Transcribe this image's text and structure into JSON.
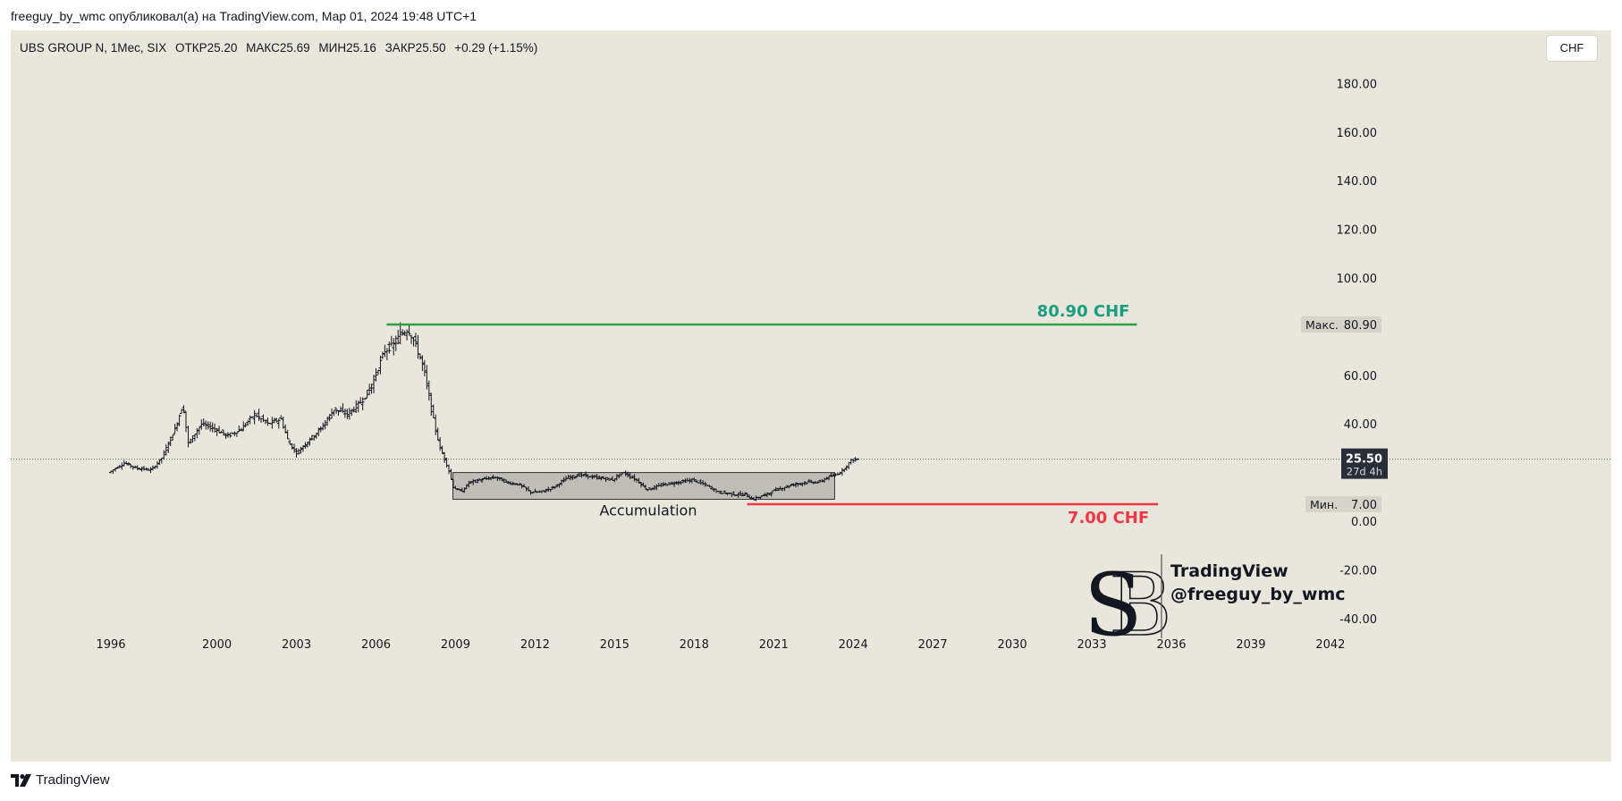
{
  "header": {
    "publish_text": "freeguy_by_wmc опубликовал(а) на TradingView.com, Мар 01, 2024 19:48 UTC+1"
  },
  "legend": {
    "symbol": "UBS GROUP N, 1Мес, SIX",
    "open": "ОТКР25.20",
    "high": "МАКС25.69",
    "low": "МИН25.16",
    "close": "ЗАКР25.50",
    "change": "+0.29 (+1.15%)"
  },
  "currency_button": "CHF",
  "footer": {
    "brand": "TradingView"
  },
  "watermark": {
    "line1": "TradingView",
    "line2": "@freeguy_by_wmc"
  },
  "colors": {
    "background": "#e9e6dc",
    "candle": "#131722",
    "resistance": "#2ea043",
    "resistance_label": "#1a9e80",
    "support": "#f23645",
    "box_fill": "#b7b5ae",
    "last_price_badge": "#2a2e39"
  },
  "chart_data": {
    "type": "candlestick",
    "symbol": "UBS GROUP N",
    "interval": "1Мес",
    "exchange": "SIX",
    "currency": "CHF",
    "x_ticks": [
      "1996",
      "2000",
      "2003",
      "2006",
      "2009",
      "2012",
      "2015",
      "2018",
      "2021",
      "2024",
      "2027",
      "2030",
      "2033",
      "2036",
      "2039",
      "2042"
    ],
    "y_ticks": [
      "180.00",
      "160.00",
      "140.00",
      "120.00",
      "100.00",
      "60.00",
      "40.00",
      "0.00",
      "-20.00",
      "-40.00"
    ],
    "ylim": [
      -45,
      195
    ],
    "grid": false,
    "price_path": [
      [
        1996.0,
        20
      ],
      [
        1996.6,
        24
      ],
      [
        1997.0,
        22
      ],
      [
        1997.6,
        21
      ],
      [
        1998.0,
        26
      ],
      [
        1998.5,
        38
      ],
      [
        1998.8,
        48
      ],
      [
        1999.0,
        32
      ],
      [
        1999.5,
        40
      ],
      [
        2000.0,
        38
      ],
      [
        2000.5,
        35
      ],
      [
        2001.0,
        38
      ],
      [
        2001.5,
        44
      ],
      [
        2002.0,
        40
      ],
      [
        2002.5,
        42
      ],
      [
        2002.8,
        32
      ],
      [
        2003.1,
        28
      ],
      [
        2003.6,
        34
      ],
      [
        2004.0,
        38
      ],
      [
        2004.5,
        46
      ],
      [
        2005.0,
        44
      ],
      [
        2005.6,
        50
      ],
      [
        2006.0,
        58
      ],
      [
        2006.4,
        70
      ],
      [
        2006.8,
        73
      ],
      [
        2007.0,
        77
      ],
      [
        2007.3,
        79
      ],
      [
        2007.6,
        72
      ],
      [
        2007.9,
        62
      ],
      [
        2008.2,
        44
      ],
      [
        2008.5,
        30
      ],
      [
        2008.8,
        22
      ],
      [
        2009.0,
        14
      ],
      [
        2009.3,
        12
      ],
      [
        2009.6,
        16
      ],
      [
        2010.0,
        17
      ],
      [
        2010.6,
        18
      ],
      [
        2011.0,
        16
      ],
      [
        2011.5,
        15
      ],
      [
        2011.9,
        12
      ],
      [
        2012.3,
        12
      ],
      [
        2012.8,
        14
      ],
      [
        2013.3,
        18
      ],
      [
        2013.8,
        19
      ],
      [
        2014.4,
        18
      ],
      [
        2015.0,
        17
      ],
      [
        2015.4,
        20
      ],
      [
        2015.9,
        17
      ],
      [
        2016.3,
        13
      ],
      [
        2016.9,
        15
      ],
      [
        2017.5,
        16
      ],
      [
        2018.0,
        17
      ],
      [
        2018.5,
        15
      ],
      [
        2019.0,
        12
      ],
      [
        2019.6,
        11
      ],
      [
        2020.0,
        11
      ],
      [
        2020.3,
        9
      ],
      [
        2020.8,
        11
      ],
      [
        2021.2,
        13
      ],
      [
        2021.8,
        15
      ],
      [
        2022.3,
        16
      ],
      [
        2022.8,
        16
      ],
      [
        2023.1,
        18
      ],
      [
        2023.4,
        19
      ],
      [
        2023.7,
        21
      ],
      [
        2024.0,
        25
      ],
      [
        2024.2,
        25.5
      ]
    ],
    "last_price": "25.50",
    "countdown": "27d 4h",
    "max_label": "Макс.",
    "max_value": "80.90",
    "min_label": "Мин.",
    "min_value": "7.00",
    "annotations": {
      "resistance_label": "80.90 CHF",
      "resistance_price": 80.9,
      "resistance_x": [
        2006.4,
        2034.7
      ],
      "support_label": "7.00 CHF",
      "support_price": 7.0,
      "support_x": [
        2020.0,
        2035.5
      ],
      "box_label": "Accumulation",
      "box": {
        "x": [
          2008.9,
          2023.3
        ],
        "y": [
          9,
          20
        ]
      }
    }
  }
}
